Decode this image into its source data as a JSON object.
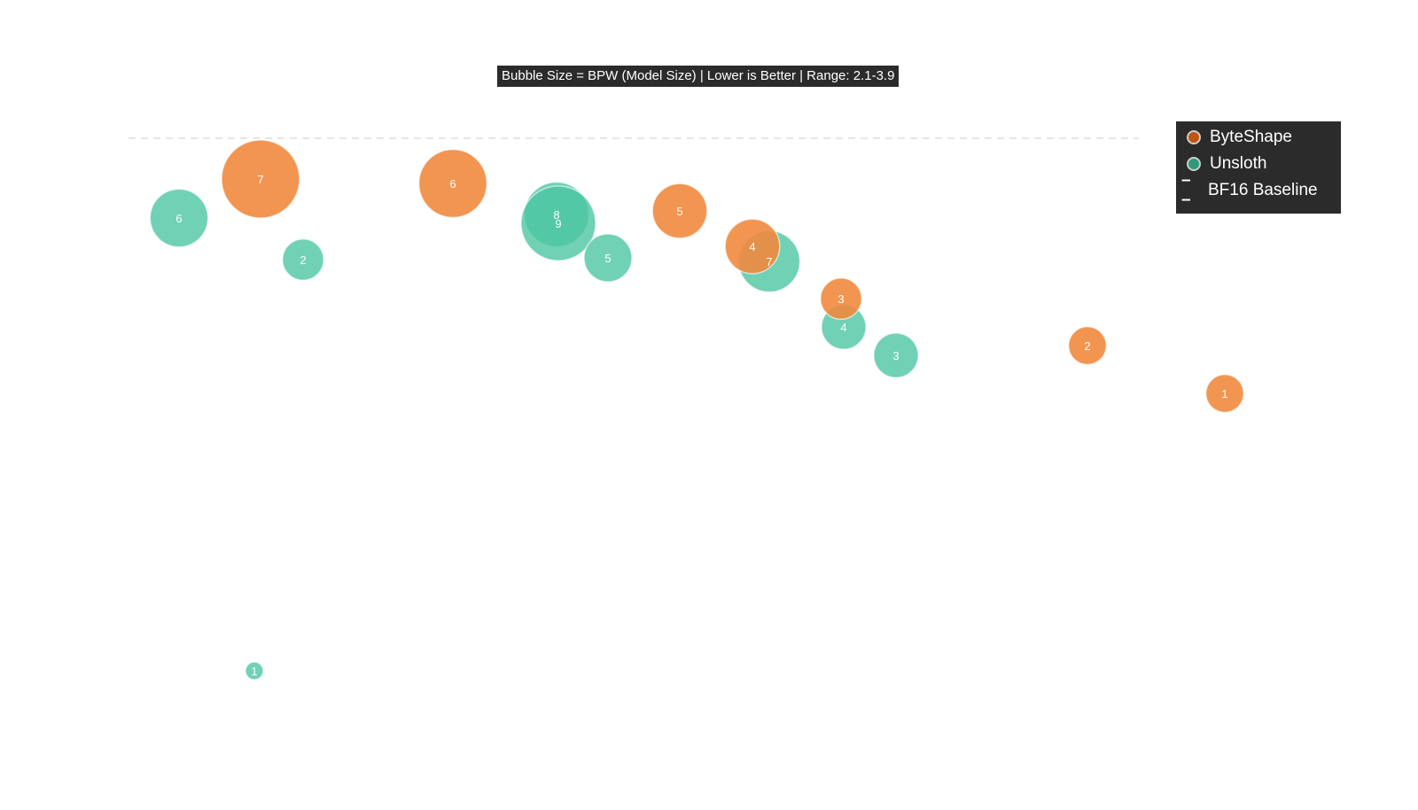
{
  "chart_data": {
    "type": "scatter",
    "subtitle": "Bubble Size = BPW (Model Size) | Lower is Better | Range: 2.1-3.9",
    "title": "",
    "xlabel": "",
    "ylabel": "",
    "xlim": [
      0,
      14
    ],
    "ylim": [
      0,
      9.14
    ],
    "grid": false,
    "legend_position": "top-right",
    "size_range": [
      2.1,
      3.9
    ],
    "baseline": {
      "name": "BF16 Baseline",
      "y": 7.58,
      "color": "#dddddd"
    },
    "series": [
      {
        "name": "ByteShape",
        "color": "#f08a3e",
        "legend_color": "#c0550f",
        "points": [
          {
            "label": "7",
            "x": 1.94,
            "y": 7.12,
            "bpw": 3.9
          },
          {
            "label": "6",
            "x": 4.11,
            "y": 7.07,
            "bpw": 3.6
          },
          {
            "label": "5",
            "x": 6.67,
            "y": 6.76,
            "bpw": 3.2
          },
          {
            "label": "4",
            "x": 7.49,
            "y": 6.36,
            "bpw": 3.2
          },
          {
            "label": "3",
            "x": 8.49,
            "y": 5.77,
            "bpw": 2.8
          },
          {
            "label": "2",
            "x": 11.27,
            "y": 5.24,
            "bpw": 2.7
          },
          {
            "label": "1",
            "x": 12.82,
            "y": 4.7,
            "bpw": 2.7
          }
        ]
      },
      {
        "name": "Unsloth",
        "color": "#4cc6a2",
        "legend_color": "#2e9a7a",
        "points": [
          {
            "label": "6",
            "x": 1.02,
            "y": 6.68,
            "bpw": 3.3
          },
          {
            "label": "2",
            "x": 2.42,
            "y": 6.21,
            "bpw": 2.8
          },
          {
            "label": "8",
            "x": 5.28,
            "y": 6.72,
            "bpw": 3.5
          },
          {
            "label": "9",
            "x": 5.3,
            "y": 6.62,
            "bpw": 3.8
          },
          {
            "label": "5",
            "x": 5.86,
            "y": 6.23,
            "bpw": 3.0
          },
          {
            "label": "7",
            "x": 7.68,
            "y": 6.19,
            "bpw": 3.4
          },
          {
            "label": "4",
            "x": 8.52,
            "y": 5.45,
            "bpw": 2.9
          },
          {
            "label": "3",
            "x": 9.11,
            "y": 5.13,
            "bpw": 2.9
          },
          {
            "label": "1",
            "x": 1.87,
            "y": 1.57,
            "bpw": 2.1
          }
        ]
      }
    ]
  }
}
